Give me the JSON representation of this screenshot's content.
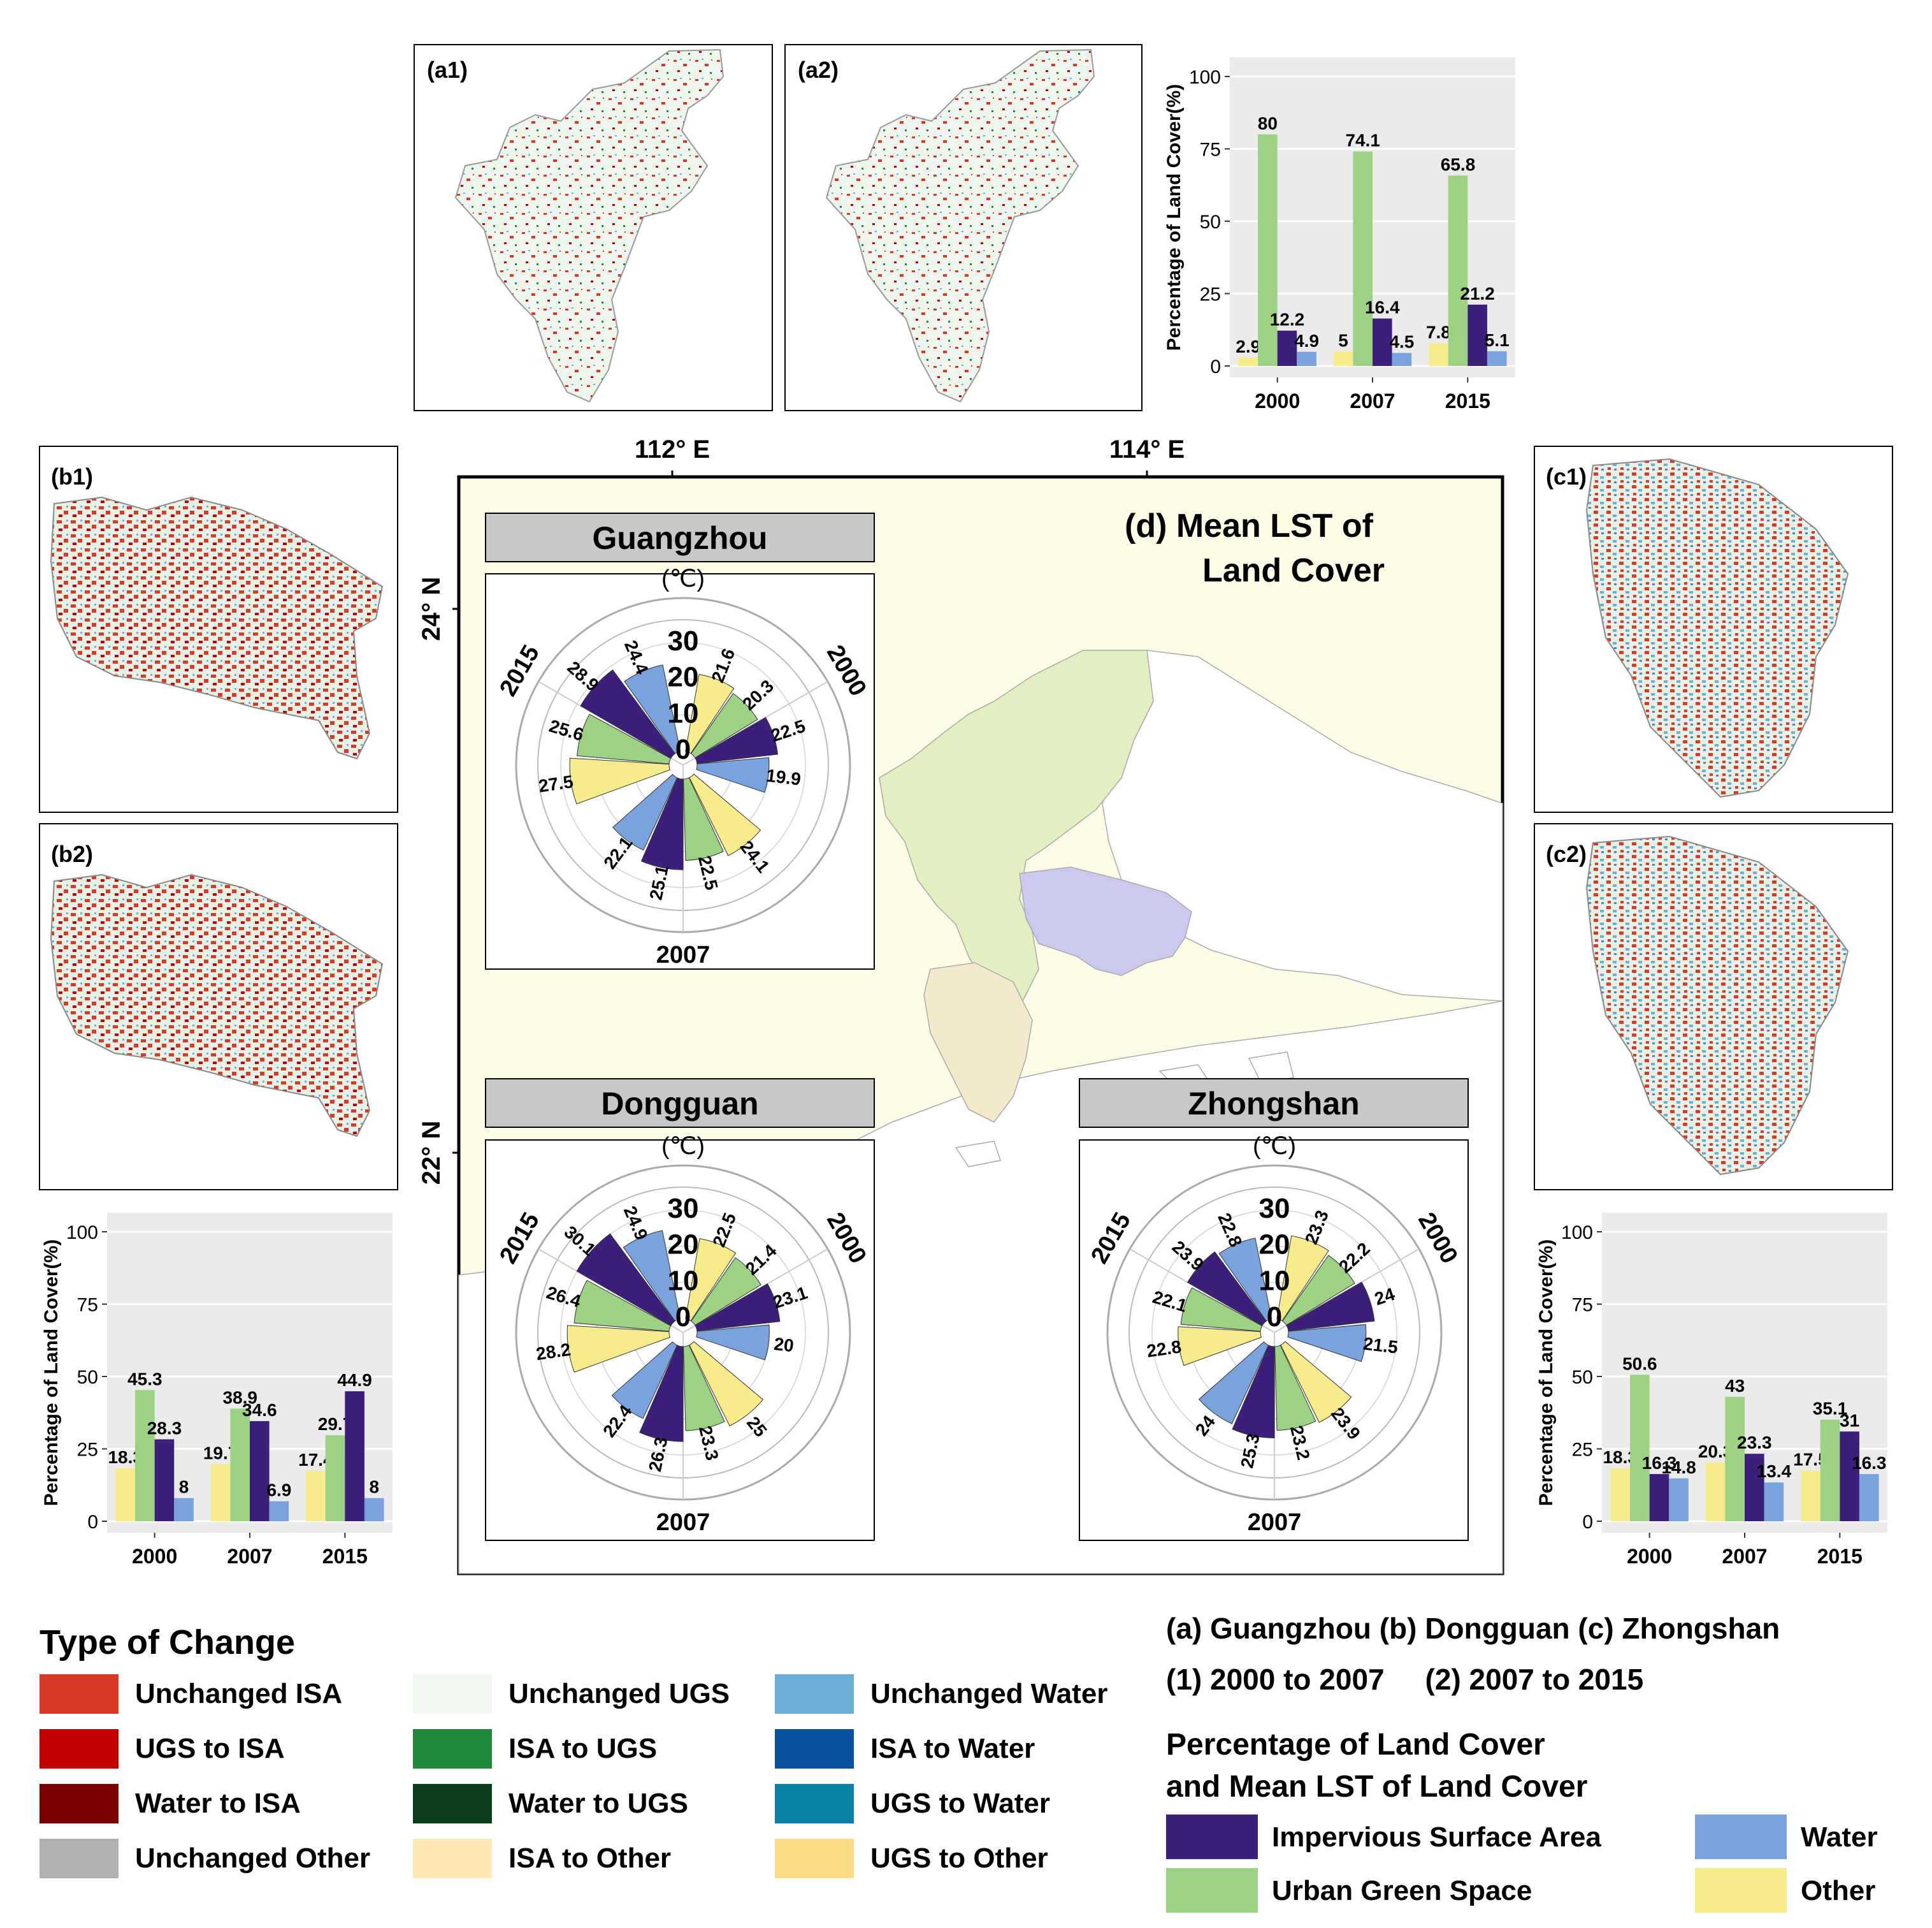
{
  "colors": {
    "isa": "#3b1f7a",
    "ugs": "#9dd183",
    "water": "#7aa2dd",
    "other": "#f7ec8c",
    "panel_bg": "#ebebeb",
    "region_bg": "#fdfce6"
  },
  "maps": {
    "a1": {
      "label": "(a1)"
    },
    "a2": {
      "label": "(a2)"
    },
    "b1": {
      "label": "(b1)"
    },
    "b2": {
      "label": "(b2)"
    },
    "c1": {
      "label": "(c1)"
    },
    "c2": {
      "label": "(c2)"
    }
  },
  "main_map": {
    "title_line1": "(d) Mean LST of",
    "title_line2": "Land Cover",
    "lon_labels": [
      "112° E",
      "114° E"
    ],
    "lat_labels": [
      "24° N",
      "22° N"
    ]
  },
  "chart_data": [
    {
      "id": "guangzhou-percentage",
      "type": "bar",
      "ylabel": "Percentage of Land Cover(%)",
      "ylim": [
        0,
        100
      ],
      "yticks": [
        "0",
        "25",
        "50",
        "75",
        "100"
      ],
      "categories": [
        "2000",
        "2007",
        "2015"
      ],
      "series": [
        {
          "name": "Other",
          "values": [
            2.9,
            5,
            7.8
          ]
        },
        {
          "name": "Urban Green Space",
          "values": [
            80,
            74.1,
            65.8
          ]
        },
        {
          "name": "Impervious Surface Area",
          "values": [
            12.2,
            16.4,
            21.2
          ]
        },
        {
          "name": "Water",
          "values": [
            4.9,
            4.5,
            5.1
          ]
        }
      ],
      "labels": [
        [
          "2.9",
          "5",
          "7.8"
        ],
        [
          "80",
          "74.1",
          "65.8"
        ],
        [
          "12.2",
          "16.4",
          "21.2"
        ],
        [
          "4.9",
          "4.5",
          "5.1"
        ]
      ],
      "grid": true
    },
    {
      "id": "dongguan-percentage",
      "type": "bar",
      "ylabel": "Percentage of Land Cover(%)",
      "ylim": [
        0,
        100
      ],
      "yticks": [
        "0",
        "25",
        "50",
        "75",
        "100"
      ],
      "categories": [
        "2000",
        "2007",
        "2015"
      ],
      "series": [
        {
          "name": "Other",
          "values": [
            18.3,
            19.7,
            17.4
          ]
        },
        {
          "name": "Urban Green Space",
          "values": [
            45.3,
            38.9,
            29.7
          ]
        },
        {
          "name": "Impervious Surface Area",
          "values": [
            28.3,
            34.6,
            44.9
          ]
        },
        {
          "name": "Water",
          "values": [
            8,
            6.9,
            8
          ]
        }
      ],
      "labels": [
        [
          "18.3",
          "19.7",
          "17.4"
        ],
        [
          "45.3",
          "38.9",
          "29.7"
        ],
        [
          "28.3",
          "34.6",
          "44.9"
        ],
        [
          "8",
          "6.9",
          "8"
        ]
      ],
      "grid": true
    },
    {
      "id": "zhongshan-percentage",
      "type": "bar",
      "ylabel": "Percentage of Land Cover(%)",
      "ylim": [
        0,
        100
      ],
      "yticks": [
        "0",
        "25",
        "50",
        "75",
        "100"
      ],
      "categories": [
        "2000",
        "2007",
        "2015"
      ],
      "series": [
        {
          "name": "Other",
          "values": [
            18.3,
            20.3,
            17.5
          ]
        },
        {
          "name": "Urban Green Space",
          "values": [
            50.6,
            43,
            35.1
          ]
        },
        {
          "name": "Impervious Surface Area",
          "values": [
            16.3,
            23.3,
            31
          ]
        },
        {
          "name": "Water",
          "values": [
            14.8,
            13.4,
            16.3
          ]
        }
      ],
      "labels": [
        [
          "18.3",
          "20.3",
          "17.5"
        ],
        [
          "50.6",
          "43",
          "35.1"
        ],
        [
          "16.3",
          "23.3",
          "31"
        ],
        [
          "14.8",
          "13.4",
          "16.3"
        ]
      ],
      "grid": true
    },
    {
      "id": "guangzhou-lst",
      "type": "radial-bar",
      "title": "Guangzhou",
      "unit": "(℃)",
      "rticks": [
        "0",
        "10",
        "20",
        "30"
      ],
      "rmax": 30,
      "year_labels": [
        "2000",
        "2007",
        "2015"
      ],
      "groups": [
        {
          "year": "2000",
          "order": [
            "Other",
            "Urban Green Space",
            "Impervious Surface Area",
            "Water"
          ],
          "values": [
            21.6,
            20.3,
            22.5,
            19.9
          ],
          "labels": [
            "21.6",
            "20.3",
            "22.5",
            "19.9"
          ]
        },
        {
          "year": "2007",
          "order": [
            "Other",
            "Urban Green Space",
            "Impervious Surface Area",
            "Water"
          ],
          "values": [
            24.1,
            22.5,
            25.1,
            22.1
          ],
          "labels": [
            "24.1",
            "22.5",
            "25.1",
            "22.1"
          ]
        },
        {
          "year": "2015",
          "order": [
            "Other",
            "Urban Green Space",
            "Impervious Surface Area",
            "Water"
          ],
          "values": [
            27.5,
            25.6,
            28.9,
            24.4
          ],
          "labels": [
            "27.5",
            "25.6",
            "28.9",
            "24.4"
          ]
        }
      ]
    },
    {
      "id": "dongguan-lst",
      "type": "radial-bar",
      "title": "Dongguan",
      "unit": "(℃)",
      "rticks": [
        "0",
        "10",
        "20",
        "30"
      ],
      "rmax": 30,
      "year_labels": [
        "2000",
        "2007",
        "2015"
      ],
      "groups": [
        {
          "year": "2000",
          "order": [
            "Other",
            "Urban Green Space",
            "Impervious Surface Area",
            "Water"
          ],
          "values": [
            22.5,
            21.4,
            23.1,
            20
          ],
          "labels": [
            "22.5",
            "21.4",
            "23.1",
            "20"
          ]
        },
        {
          "year": "2007",
          "order": [
            "Other",
            "Urban Green Space",
            "Impervious Surface Area",
            "Water"
          ],
          "values": [
            25,
            23.3,
            26.3,
            22.4
          ],
          "labels": [
            "25",
            "23.3",
            "26.3",
            "22.4"
          ]
        },
        {
          "year": "2015",
          "order": [
            "Other",
            "Urban Green Space",
            "Impervious Surface Area",
            "Water"
          ],
          "values": [
            28.2,
            26.4,
            30.1,
            24.9
          ],
          "labels": [
            "28.2",
            "26.4",
            "30.1",
            "24.9"
          ]
        }
      ]
    },
    {
      "id": "zhongshan-lst",
      "type": "radial-bar",
      "title": "Zhongshan",
      "unit": "(℃)",
      "rticks": [
        "0",
        "10",
        "20",
        "30"
      ],
      "rmax": 30,
      "year_labels": [
        "2000",
        "2007",
        "2015"
      ],
      "groups": [
        {
          "year": "2000",
          "order": [
            "Other",
            "Urban Green Space",
            "Impervious Surface Area",
            "Water"
          ],
          "values": [
            23.3,
            22.2,
            24,
            21.5
          ],
          "labels": [
            "23.3",
            "22.2",
            "24",
            "21.5"
          ]
        },
        {
          "year": "2007",
          "order": [
            "Other",
            "Urban Green Space",
            "Impervious Surface Area",
            "Water"
          ],
          "values": [
            23.9,
            23.2,
            25.3,
            24
          ],
          "labels": [
            "23.9",
            "23.2",
            "25.3",
            "24"
          ]
        },
        {
          "year": "2015",
          "order": [
            "Other",
            "Urban Green Space",
            "Impervious Surface Area",
            "Water"
          ],
          "values": [
            22.8,
            22.1,
            23.9,
            22.8
          ],
          "labels": [
            "22.8",
            "22.1",
            "23.9",
            "22.8"
          ]
        }
      ]
    }
  ],
  "legend_change": {
    "title": "Type of Change",
    "items": [
      {
        "label": "Unchanged ISA",
        "color": "#d93a26"
      },
      {
        "label": "UGS to ISA",
        "color": "#c00000"
      },
      {
        "label": "Water to ISA",
        "color": "#7a0000"
      },
      {
        "label": "Unchanged Other",
        "color": "#b0b0b0"
      },
      {
        "label": "Unchanged UGS",
        "color": "#f0f7ef"
      },
      {
        "label": "ISA to UGS",
        "color": "#1f8a3a"
      },
      {
        "label": "Water to UGS",
        "color": "#0b3f1c"
      },
      {
        "label": "ISA to Other",
        "color": "#fde8b6"
      },
      {
        "label": "Unchanged Water",
        "color": "#6baed6"
      },
      {
        "label": "ISA to Water",
        "color": "#08519c"
      },
      {
        "label": "UGS to Water",
        "color": "#0a82a8"
      },
      {
        "label": "UGS to Other",
        "color": "#fcdd85"
      }
    ]
  },
  "notes": {
    "line1": "(a) Guangzhou (b) Dongguan (c) Zhongshan",
    "line2": "(1) 2000 to 2007     (2) 2007 to 2015"
  },
  "legend_cover": {
    "title_line1": "Percentage of Land Cover",
    "title_line2": "and Mean LST of Land Cover",
    "items": [
      {
        "label": "Impervious Surface Area",
        "color": "#3b1f7a"
      },
      {
        "label": "Water",
        "color": "#7aa2dd"
      },
      {
        "label": "Urban Green Space",
        "color": "#9dd183"
      },
      {
        "label": "Other",
        "color": "#f7ec8c"
      }
    ]
  }
}
